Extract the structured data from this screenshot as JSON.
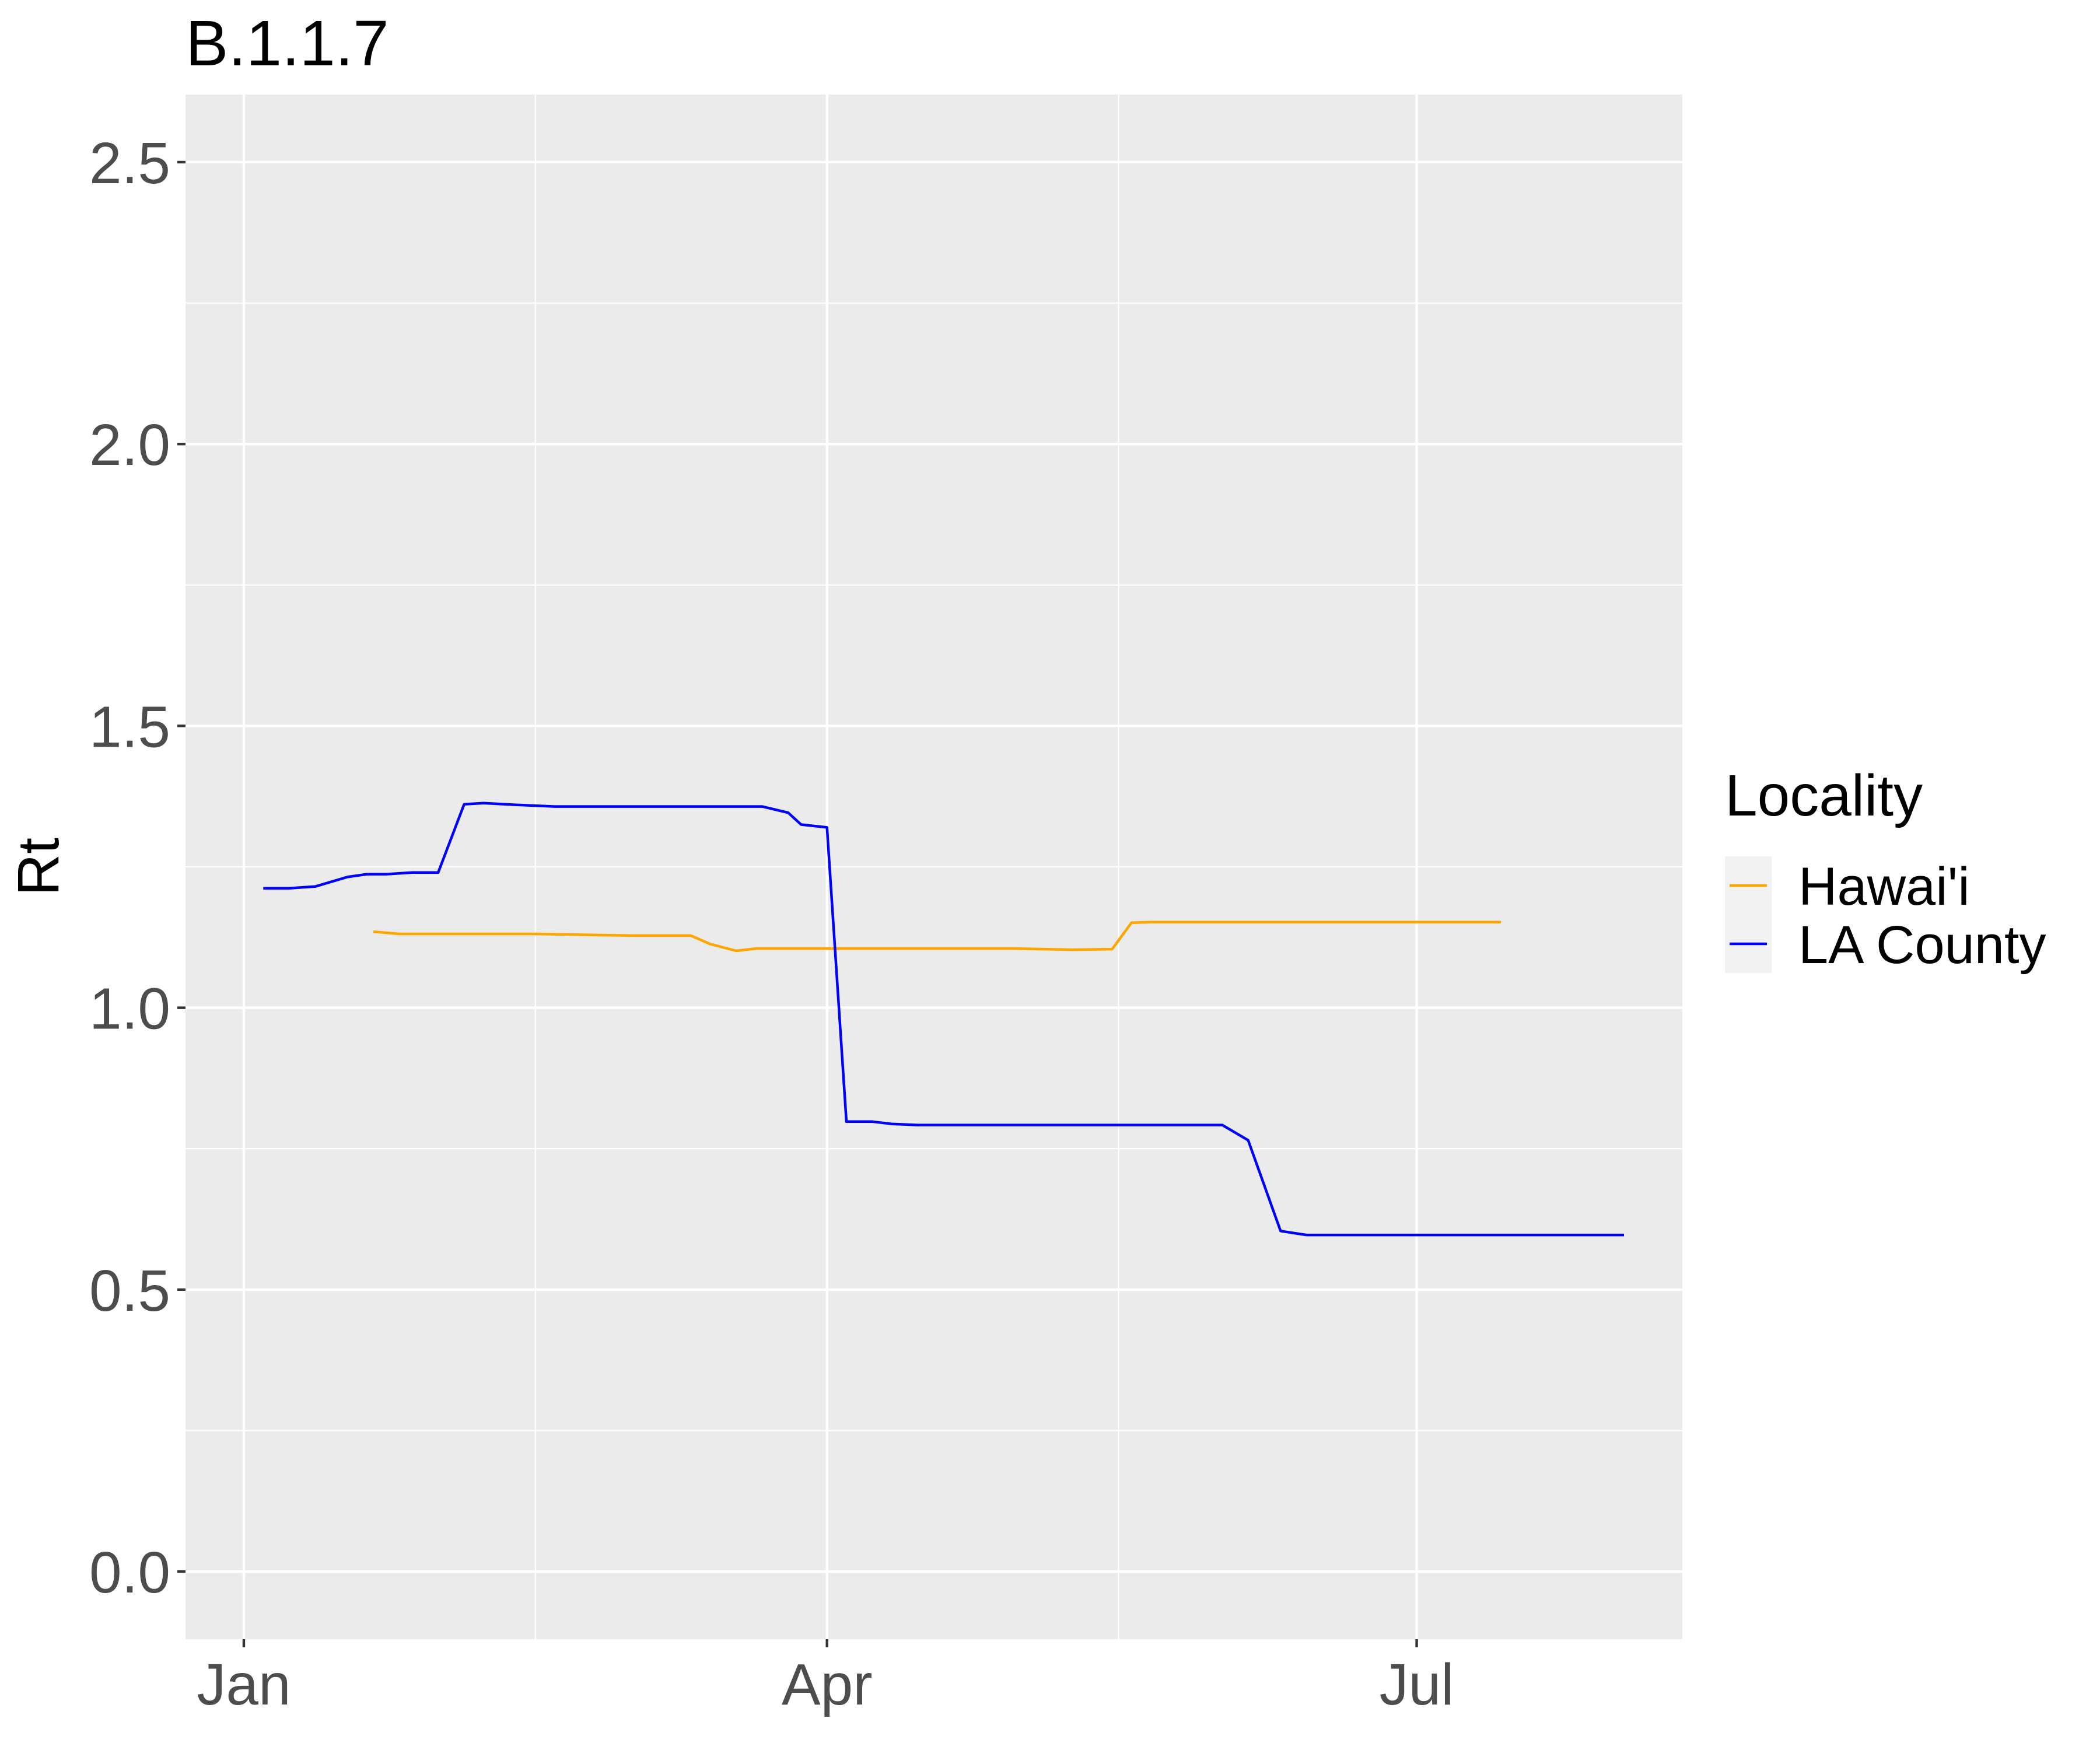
{
  "chart_data": {
    "type": "line",
    "title": "B.1.1.7",
    "xlabel": "",
    "ylabel": "Rt",
    "x_axis_kind": "date",
    "xlim": [
      "2020-12-23",
      "2021-08-11"
    ],
    "ylim": [
      -0.12,
      2.62
    ],
    "x_ticks": [
      {
        "label": "Jan",
        "date": "2021-01-01"
      },
      {
        "label": "Apr",
        "date": "2021-04-01"
      },
      {
        "label": "Jul",
        "date": "2021-07-01"
      }
    ],
    "x_minor_ticks": [
      "2021-02-15",
      "2021-05-16",
      "2021-08-16"
    ],
    "y_ticks": [
      0.0,
      0.5,
      1.0,
      1.5,
      2.0,
      2.5
    ],
    "y_tick_labels": [
      "0.0",
      "0.5",
      "1.0",
      "1.5",
      "2.0",
      "2.5"
    ],
    "grid": true,
    "panel_background": "#ebebeb",
    "legend": {
      "title": "Locality",
      "position": "right"
    },
    "series": [
      {
        "name": "Hawai'i",
        "color": "#ffa500",
        "points": [
          [
            "2021-01-21",
            1.135
          ],
          [
            "2021-01-25",
            1.131
          ],
          [
            "2021-02-15",
            1.131
          ],
          [
            "2021-03-02",
            1.128
          ],
          [
            "2021-03-11",
            1.128
          ],
          [
            "2021-03-14",
            1.113
          ],
          [
            "2021-03-18",
            1.101
          ],
          [
            "2021-03-21",
            1.105
          ],
          [
            "2021-04-01",
            1.105
          ],
          [
            "2021-04-30",
            1.105
          ],
          [
            "2021-05-09",
            1.103
          ],
          [
            "2021-05-15",
            1.104
          ],
          [
            "2021-05-18",
            1.151
          ],
          [
            "2021-05-21",
            1.152
          ],
          [
            "2021-07-14",
            1.152
          ]
        ]
      },
      {
        "name": "LA County",
        "color": "#0000ff",
        "points": [
          [
            "2021-01-04",
            1.212
          ],
          [
            "2021-01-08",
            1.212
          ],
          [
            "2021-01-12",
            1.215
          ],
          [
            "2021-01-17",
            1.232
          ],
          [
            "2021-01-20",
            1.237
          ],
          [
            "2021-01-23",
            1.237
          ],
          [
            "2021-01-27",
            1.24
          ],
          [
            "2021-01-31",
            1.24
          ],
          [
            "2021-02-04",
            1.361
          ],
          [
            "2021-02-07",
            1.363
          ],
          [
            "2021-02-12",
            1.36
          ],
          [
            "2021-02-18",
            1.357
          ],
          [
            "2021-03-22",
            1.357
          ],
          [
            "2021-03-26",
            1.346
          ],
          [
            "2021-03-28",
            1.325
          ],
          [
            "2021-04-01",
            1.32
          ],
          [
            "2021-04-04",
            0.798
          ],
          [
            "2021-04-08",
            0.798
          ],
          [
            "2021-04-11",
            0.794
          ],
          [
            "2021-04-15",
            0.792
          ],
          [
            "2021-06-01",
            0.792
          ],
          [
            "2021-06-05",
            0.765
          ],
          [
            "2021-06-10",
            0.604
          ],
          [
            "2021-06-14",
            0.597
          ],
          [
            "2021-08-02",
            0.597
          ]
        ]
      }
    ]
  }
}
